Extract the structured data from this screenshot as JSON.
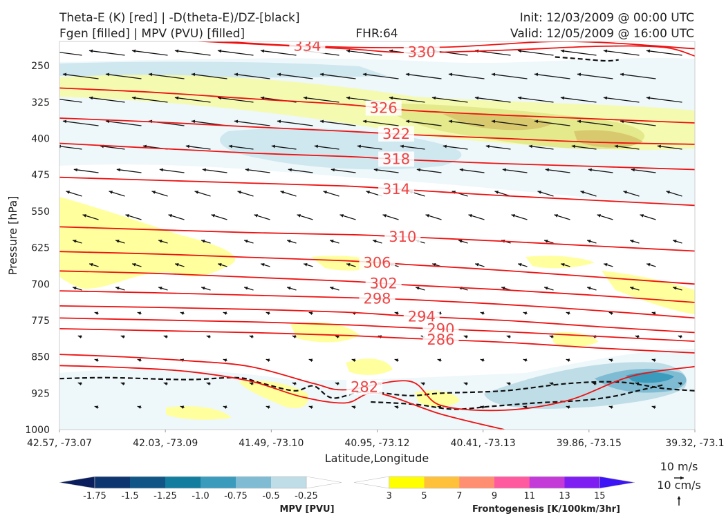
{
  "header": {
    "title_line1": "Theta-E (K) [red] | -D(theta-E)/DZ-[black]",
    "title_line2": "Fgen [filled] | MPV (PVU) [filled]",
    "fhr": "FHR:64",
    "init": "Init: 12/03/2009 @ 00:00 UTC",
    "valid": "Valid: 12/05/2009 @ 16:00 UTC"
  },
  "chart_data": {
    "type": "cross-section",
    "xlabel": "Latitude,Longitude",
    "ylabel": "Pressure [hPa]",
    "x_ticks": [
      "42.57, -73.07",
      "42.03, -73.09",
      "41.49, -73.10",
      "40.95, -73.12",
      "40.41, -73.13",
      "39.86, -73.15",
      "39.32, -73.1"
    ],
    "y_ticks": [
      250,
      325,
      400,
      475,
      550,
      625,
      700,
      775,
      850,
      925,
      1000
    ],
    "ylim": [
      1000,
      200
    ],
    "theta_e_contours": [
      {
        "level": "334",
        "points": [
          [
            0,
            150
          ],
          [
            0.08,
            152
          ],
          [
            0.2,
            192
          ],
          [
            0.4,
            210
          ],
          [
            0.6,
            212
          ],
          [
            0.8,
            200
          ],
          [
            1,
            215
          ]
        ]
      },
      {
        "level": "330",
        "points": [
          [
            0,
            187
          ],
          [
            0.15,
            195
          ],
          [
            0.3,
            205
          ],
          [
            0.45,
            215
          ],
          [
            0.55,
            223
          ],
          [
            0.7,
            218
          ],
          [
            0.85,
            210
          ],
          [
            0.95,
            212
          ],
          [
            1,
            230
          ]
        ]
      },
      {
        "level": "326",
        "points": [
          [
            0,
            296
          ],
          [
            0.15,
            305
          ],
          [
            0.3,
            318
          ],
          [
            0.45,
            330
          ],
          [
            0.55,
            342
          ],
          [
            0.7,
            352
          ],
          [
            0.85,
            360
          ],
          [
            1,
            368
          ]
        ]
      },
      {
        "level": "322",
        "points": [
          [
            0,
            358
          ],
          [
            0.15,
            366
          ],
          [
            0.3,
            376
          ],
          [
            0.45,
            385
          ],
          [
            0.55,
            392
          ],
          [
            0.7,
            400
          ],
          [
            0.85,
            408
          ],
          [
            1,
            412
          ]
        ]
      },
      {
        "level": "318",
        "points": [
          [
            0,
            410
          ],
          [
            0.15,
            420
          ],
          [
            0.3,
            430
          ],
          [
            0.45,
            437
          ],
          [
            0.55,
            444
          ],
          [
            0.7,
            452
          ],
          [
            0.85,
            458
          ],
          [
            1,
            464
          ]
        ]
      },
      {
        "level": "314",
        "points": [
          [
            0,
            480
          ],
          [
            0.15,
            486
          ],
          [
            0.3,
            492
          ],
          [
            0.45,
            498
          ],
          [
            0.55,
            506
          ],
          [
            0.7,
            518
          ],
          [
            0.85,
            528
          ],
          [
            1,
            538
          ]
        ]
      },
      {
        "level": "310",
        "points": [
          [
            0,
            582
          ],
          [
            0.15,
            588
          ],
          [
            0.3,
            594
          ],
          [
            0.45,
            598
          ],
          [
            0.55,
            603
          ],
          [
            0.7,
            612
          ],
          [
            0.85,
            622
          ],
          [
            1,
            632
          ]
        ]
      },
      {
        "level": "306",
        "points": [
          [
            0,
            633
          ],
          [
            0.15,
            638
          ],
          [
            0.3,
            645
          ],
          [
            0.45,
            652
          ],
          [
            0.55,
            660
          ],
          [
            0.7,
            672
          ],
          [
            0.85,
            686
          ],
          [
            1,
            700
          ]
        ]
      },
      {
        "level": "302",
        "points": [
          [
            0,
            673
          ],
          [
            0.15,
            678
          ],
          [
            0.3,
            686
          ],
          [
            0.45,
            694
          ],
          [
            0.55,
            702
          ],
          [
            0.7,
            712
          ],
          [
            0.85,
            724
          ],
          [
            1,
            738
          ]
        ]
      },
      {
        "level": "298",
        "points": [
          [
            0,
            714
          ],
          [
            0.15,
            718
          ],
          [
            0.3,
            723
          ],
          [
            0.45,
            728
          ],
          [
            0.55,
            732
          ],
          [
            0.7,
            742
          ],
          [
            0.85,
            755
          ],
          [
            1,
            770
          ]
        ]
      },
      {
        "level": "294",
        "points": [
          [
            0,
            745
          ],
          [
            0.15,
            748
          ],
          [
            0.3,
            752
          ],
          [
            0.45,
            758
          ],
          [
            0.55,
            766
          ],
          [
            0.7,
            775
          ],
          [
            0.85,
            788
          ],
          [
            1,
            800
          ]
        ]
      },
      {
        "level": "290",
        "points": [
          [
            0,
            770
          ],
          [
            0.15,
            774
          ],
          [
            0.3,
            778
          ],
          [
            0.45,
            784
          ],
          [
            0.55,
            790
          ],
          [
            0.7,
            798
          ],
          [
            0.85,
            808
          ],
          [
            1,
            818
          ]
        ]
      },
      {
        "level": "286",
        "points": [
          [
            0,
            792
          ],
          [
            0.15,
            796
          ],
          [
            0.3,
            800
          ],
          [
            0.45,
            806
          ],
          [
            0.55,
            812
          ],
          [
            0.7,
            820
          ],
          [
            0.85,
            832
          ],
          [
            1,
            842
          ]
        ]
      },
      {
        "level": "282",
        "points": [
          [
            0,
            845
          ],
          [
            0.1,
            850
          ],
          [
            0.2,
            858
          ],
          [
            0.3,
            870
          ],
          [
            0.4,
            905
          ],
          [
            0.45,
            918
          ],
          [
            0.55,
            900
          ],
          [
            0.6,
            950
          ],
          [
            0.7,
            960
          ],
          [
            0.8,
            940
          ],
          [
            0.9,
            890
          ],
          [
            1,
            870
          ]
        ]
      },
      {
        "level": "",
        "points": [
          [
            0,
            868
          ],
          [
            0.1,
            872
          ],
          [
            0.2,
            880
          ],
          [
            0.3,
            900
          ],
          [
            0.38,
            932
          ],
          [
            0.45,
            945
          ],
          [
            0.5,
            925
          ],
          [
            0.6,
            968
          ],
          [
            0.7,
            1000
          ]
        ]
      }
    ],
    "dthetae_dz_contours": [
      [
        [
          0,
          895
        ],
        [
          0.08,
          893
        ],
        [
          0.2,
          897
        ],
        [
          0.28,
          893
        ],
        [
          0.32,
          905
        ],
        [
          0.37,
          920
        ],
        [
          0.4,
          910
        ],
        [
          0.43,
          935
        ],
        [
          0.48,
          922
        ],
        [
          0.55,
          930
        ],
        [
          0.6,
          925
        ],
        [
          0.7,
          920
        ],
        [
          0.8,
          905
        ],
        [
          0.88,
          902
        ],
        [
          0.95,
          915
        ],
        [
          1,
          920
        ]
      ],
      [
        [
          0.49,
          943
        ],
        [
          0.56,
          948
        ],
        [
          0.62,
          958
        ],
        [
          0.68,
          952
        ],
        [
          0.75,
          945
        ],
        [
          0.82,
          940
        ],
        [
          0.87,
          932
        ],
        [
          0.91,
          920
        ],
        [
          0.95,
          908
        ]
      ],
      [
        [
          0.78,
          232
        ],
        [
          0.82,
          236
        ],
        [
          0.86,
          240
        ],
        [
          0.88,
          238
        ]
      ]
    ],
    "colorbars": [
      {
        "label": "MPV [PVU]",
        "ticks": [
          "-1.75",
          "-1.5",
          "-1.25",
          "-1.0",
          "-0.75",
          "-0.5",
          "-0.25"
        ],
        "colors": [
          "#0a1e5e",
          "#0d3670",
          "#105585",
          "#127d9e",
          "#3a9bbc",
          "#7fbcd3",
          "#bfdde7",
          "#ffffff"
        ]
      },
      {
        "label": "Frontogenesis [K/100km/3hr]",
        "ticks": [
          "3",
          "5",
          "7",
          "9",
          "11",
          "13",
          "15"
        ],
        "colors": [
          "#ffffff",
          "#ffff00",
          "#ffc13a",
          "#ff8f70",
          "#ff5aa0",
          "#c33ad8",
          "#7f1ef2",
          "#3c14f5"
        ]
      }
    ],
    "quiver_key": {
      "horizontal": "10 m/s",
      "vertical": "10 cm/s"
    }
  }
}
